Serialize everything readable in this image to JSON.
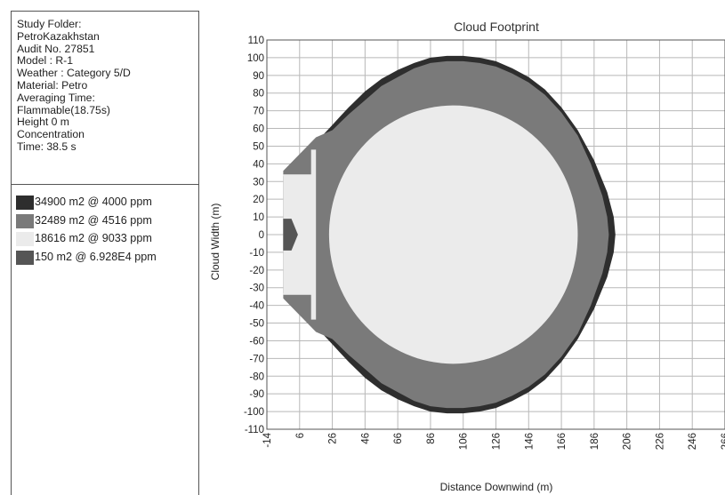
{
  "info": {
    "lines": [
      "Study Folder:",
      "PetroKazakhstan",
      "Audit No. 27851",
      "Model : R-1",
      "Weather : Category 5/D",
      "Material: Petro",
      "Averaging Time:",
      "Flammable(18.75s)",
      "Height 0 m",
      "Concentration",
      "Time: 38.5 s"
    ]
  },
  "legend": [
    {
      "label": "34900 m2 @ 4000 ppm",
      "color": "#2e2e2e"
    },
    {
      "label": "32489 m2 @ 4516 ppm",
      "color": "#7a7a7a"
    },
    {
      "label": "18616 m2 @ 9033 ppm",
      "color": "#ebebeb"
    },
    {
      "label": "150 m2 @ 6.928E4 ppm",
      "color": "#555555"
    }
  ],
  "chart_data": {
    "type": "area",
    "title": "Cloud Footprint",
    "xlabel": "Distance Downwind (m)",
    "ylabel": "Cloud Width (m)",
    "xlim": [
      -14,
      266
    ],
    "ylim": [
      -110,
      110
    ],
    "x_ticks": [
      -14,
      6,
      26,
      46,
      66,
      86,
      106,
      126,
      146,
      166,
      186,
      206,
      226,
      246,
      266
    ],
    "y_ticks": [
      110,
      100,
      90,
      80,
      70,
      60,
      50,
      40,
      30,
      20,
      10,
      0,
      -10,
      -20,
      -30,
      -40,
      -50,
      -60,
      -70,
      -80,
      -90,
      -100,
      -110
    ],
    "grid": true,
    "series": [
      {
        "name": "34900 m2 @ 4000 ppm",
        "color": "#2e2e2e",
        "points": [
          [
            -4,
            33
          ],
          [
            20,
            56
          ],
          [
            26,
            62
          ],
          [
            30,
            66
          ],
          [
            36,
            72
          ],
          [
            46,
            81
          ],
          [
            56,
            88
          ],
          [
            66,
            93
          ],
          [
            76,
            97
          ],
          [
            86,
            100
          ],
          [
            96,
            101
          ],
          [
            106,
            101
          ],
          [
            116,
            100
          ],
          [
            126,
            98
          ],
          [
            136,
            94
          ],
          [
            146,
            89
          ],
          [
            156,
            82
          ],
          [
            166,
            72
          ],
          [
            176,
            59
          ],
          [
            186,
            42
          ],
          [
            194,
            24
          ],
          [
            198,
            10
          ],
          [
            199,
            0
          ],
          [
            198,
            -10
          ],
          [
            194,
            -24
          ],
          [
            186,
            -42
          ],
          [
            176,
            -59
          ],
          [
            166,
            -72
          ],
          [
            156,
            -82
          ],
          [
            146,
            -89
          ],
          [
            136,
            -94
          ],
          [
            126,
            -98
          ],
          [
            116,
            -100
          ],
          [
            106,
            -101
          ],
          [
            96,
            -101
          ],
          [
            86,
            -100
          ],
          [
            76,
            -97
          ],
          [
            66,
            -93
          ],
          [
            56,
            -88
          ],
          [
            46,
            -81
          ],
          [
            36,
            -72
          ],
          [
            30,
            -66
          ],
          [
            26,
            -62
          ],
          [
            20,
            -56
          ],
          [
            -4,
            -33
          ]
        ]
      },
      {
        "name": "32489 m2 @ 4516 ppm",
        "color": "#7a7a7a",
        "points": [
          [
            -4,
            36
          ],
          [
            16,
            55
          ],
          [
            21,
            57
          ],
          [
            26,
            59
          ],
          [
            36,
            68
          ],
          [
            46,
            76
          ],
          [
            56,
            84
          ],
          [
            66,
            89
          ],
          [
            76,
            94
          ],
          [
            86,
            97
          ],
          [
            96,
            98
          ],
          [
            106,
            98
          ],
          [
            116,
            97
          ],
          [
            126,
            95
          ],
          [
            136,
            91
          ],
          [
            146,
            86
          ],
          [
            156,
            79
          ],
          [
            166,
            69
          ],
          [
            176,
            56
          ],
          [
            184,
            40
          ],
          [
            191,
            22
          ],
          [
            194,
            10
          ],
          [
            195,
            0
          ],
          [
            194,
            -10
          ],
          [
            191,
            -22
          ],
          [
            184,
            -40
          ],
          [
            176,
            -56
          ],
          [
            166,
            -69
          ],
          [
            156,
            -79
          ],
          [
            146,
            -86
          ],
          [
            136,
            -91
          ],
          [
            126,
            -95
          ],
          [
            116,
            -97
          ],
          [
            106,
            -98
          ],
          [
            96,
            -98
          ],
          [
            86,
            -97
          ],
          [
            76,
            -94
          ],
          [
            66,
            -89
          ],
          [
            56,
            -84
          ],
          [
            46,
            -76
          ],
          [
            36,
            -68
          ],
          [
            26,
            -59
          ],
          [
            21,
            -57
          ],
          [
            16,
            -55
          ],
          [
            -4,
            -36
          ]
        ]
      },
      {
        "name": "18616 m2 @ 9033 ppm",
        "color": "#ebebeb",
        "points": [
          [
            -4,
            34
          ],
          [
            13,
            34
          ],
          [
            13,
            48
          ],
          [
            16,
            48
          ],
          [
            16,
            -48
          ],
          [
            13,
            -48
          ],
          [
            13,
            -34
          ],
          [
            -4,
            -34
          ]
        ],
        "ellipse": {
          "cx": 100,
          "cy": 0,
          "rx": 76,
          "ry": 73
        }
      },
      {
        "name": "150 m2 @ 6.928E4 ppm",
        "color": "#555555",
        "points": [
          [
            -4,
            9
          ],
          [
            1,
            9
          ],
          [
            5,
            0
          ],
          [
            1,
            -9
          ],
          [
            -4,
            -9
          ]
        ]
      }
    ]
  }
}
